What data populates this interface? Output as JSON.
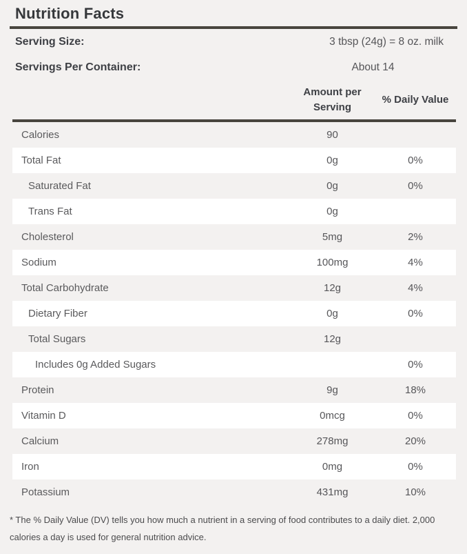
{
  "title": "Nutrition Facts",
  "serving": {
    "size_label": "Serving Size:",
    "size_value": "3 tbsp (24g) = 8 oz. milk",
    "per_container_label": "Servings Per Container:",
    "per_container_value": "About 14"
  },
  "table": {
    "headers": {
      "amount": "Amount per Serving",
      "dv": "% Daily Value"
    },
    "rows": [
      {
        "label": "Calories",
        "amount": "90",
        "dv": "",
        "indent": 0
      },
      {
        "label": "Total Fat",
        "amount": "0g",
        "dv": "0%",
        "indent": 0
      },
      {
        "label": "Saturated Fat",
        "amount": "0g",
        "dv": "0%",
        "indent": 1
      },
      {
        "label": "Trans Fat",
        "amount": "0g",
        "dv": "",
        "indent": 1
      },
      {
        "label": "Cholesterol",
        "amount": "5mg",
        "dv": "2%",
        "indent": 0
      },
      {
        "label": "Sodium",
        "amount": "100mg",
        "dv": "4%",
        "indent": 0
      },
      {
        "label": "Total Carbohydrate",
        "amount": "12g",
        "dv": "4%",
        "indent": 0
      },
      {
        "label": "Dietary Fiber",
        "amount": "0g",
        "dv": "0%",
        "indent": 1
      },
      {
        "label": "Total Sugars",
        "amount": "12g",
        "dv": "",
        "indent": 1
      },
      {
        "label": "Includes 0g Added Sugars",
        "amount": "",
        "dv": "0%",
        "indent": 2
      },
      {
        "label": "Protein",
        "amount": "9g",
        "dv": "18%",
        "indent": 0
      },
      {
        "label": "Vitamin D",
        "amount": "0mcg",
        "dv": "0%",
        "indent": 0
      },
      {
        "label": "Calcium",
        "amount": "278mg",
        "dv": "20%",
        "indent": 0
      },
      {
        "label": "Iron",
        "amount": "0mg",
        "dv": "0%",
        "indent": 0
      },
      {
        "label": "Potassium",
        "amount": "431mg",
        "dv": "10%",
        "indent": 0
      }
    ]
  },
  "footnote": "* The % Daily Value (DV) tells you how much a nutrient in a serving of food contributes to a daily diet. 2,000 calories a day is used for general nutrition advice.",
  "colors": {
    "page_background": "#f3f1f0",
    "stripe": "#ffffff",
    "rule": "#48453e",
    "title_text": "#36383b",
    "body_text": "#58585a"
  }
}
